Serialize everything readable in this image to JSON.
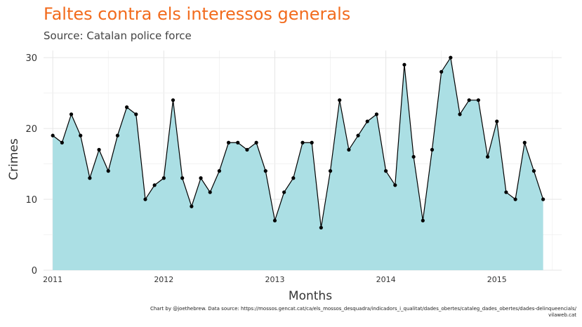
{
  "header": {
    "title": "Faltes contra els interessos generals",
    "subtitle": "Source: Catalan police force"
  },
  "caption": {
    "line1": "Chart by @joethebrew. Data source: https://mossos.gencat.cat/ca/els_mossos_desquadra/indicadors_i_qualitat/dades_obertes/cataleg_dades_obertes/dades-delinqueencials/",
    "line2": "vilaweb.cat"
  },
  "colors": {
    "title": "#f26b1d",
    "area_fill": "#abdfe4",
    "line": "#000000",
    "grid": "#e6e6e6"
  },
  "chart_data": {
    "type": "area",
    "title": "Faltes contra els interessos generals",
    "subtitle": "Source: Catalan police force",
    "xlabel": "Months",
    "ylabel": "Crimes",
    "xlim": [
      "2010-12",
      "2015-08"
    ],
    "ylim": [
      0,
      31
    ],
    "x_ticks": [
      "2011",
      "2012",
      "2013",
      "2014",
      "2015"
    ],
    "y_ticks": [
      0,
      10,
      20,
      30
    ],
    "grid": true,
    "x": [
      "2011-01",
      "2011-02",
      "2011-03",
      "2011-04",
      "2011-05",
      "2011-06",
      "2011-07",
      "2011-08",
      "2011-09",
      "2011-10",
      "2011-11",
      "2011-12",
      "2012-01",
      "2012-02",
      "2012-03",
      "2012-04",
      "2012-05",
      "2012-06",
      "2012-07",
      "2012-08",
      "2012-09",
      "2012-10",
      "2012-11",
      "2012-12",
      "2013-01",
      "2013-02",
      "2013-03",
      "2013-04",
      "2013-05",
      "2013-06",
      "2013-07",
      "2013-08",
      "2013-09",
      "2013-10",
      "2013-11",
      "2013-12",
      "2014-01",
      "2014-02",
      "2014-03",
      "2014-04",
      "2014-05",
      "2014-06",
      "2014-07",
      "2014-08",
      "2014-09",
      "2014-10",
      "2014-11",
      "2014-12",
      "2015-01",
      "2015-02",
      "2015-03",
      "2015-04",
      "2015-05",
      "2015-06"
    ],
    "values": [
      19,
      18,
      22,
      19,
      13,
      17,
      14,
      19,
      23,
      22,
      10,
      12,
      13,
      24,
      13,
      9,
      13,
      11,
      14,
      18,
      18,
      17,
      18,
      14,
      7,
      11,
      13,
      18,
      18,
      6,
      14,
      24,
      17,
      19,
      21,
      22,
      14,
      12,
      29,
      16,
      7,
      17,
      28,
      30,
      22,
      24,
      24,
      16,
      21,
      11,
      10,
      18,
      14,
      10
    ]
  }
}
